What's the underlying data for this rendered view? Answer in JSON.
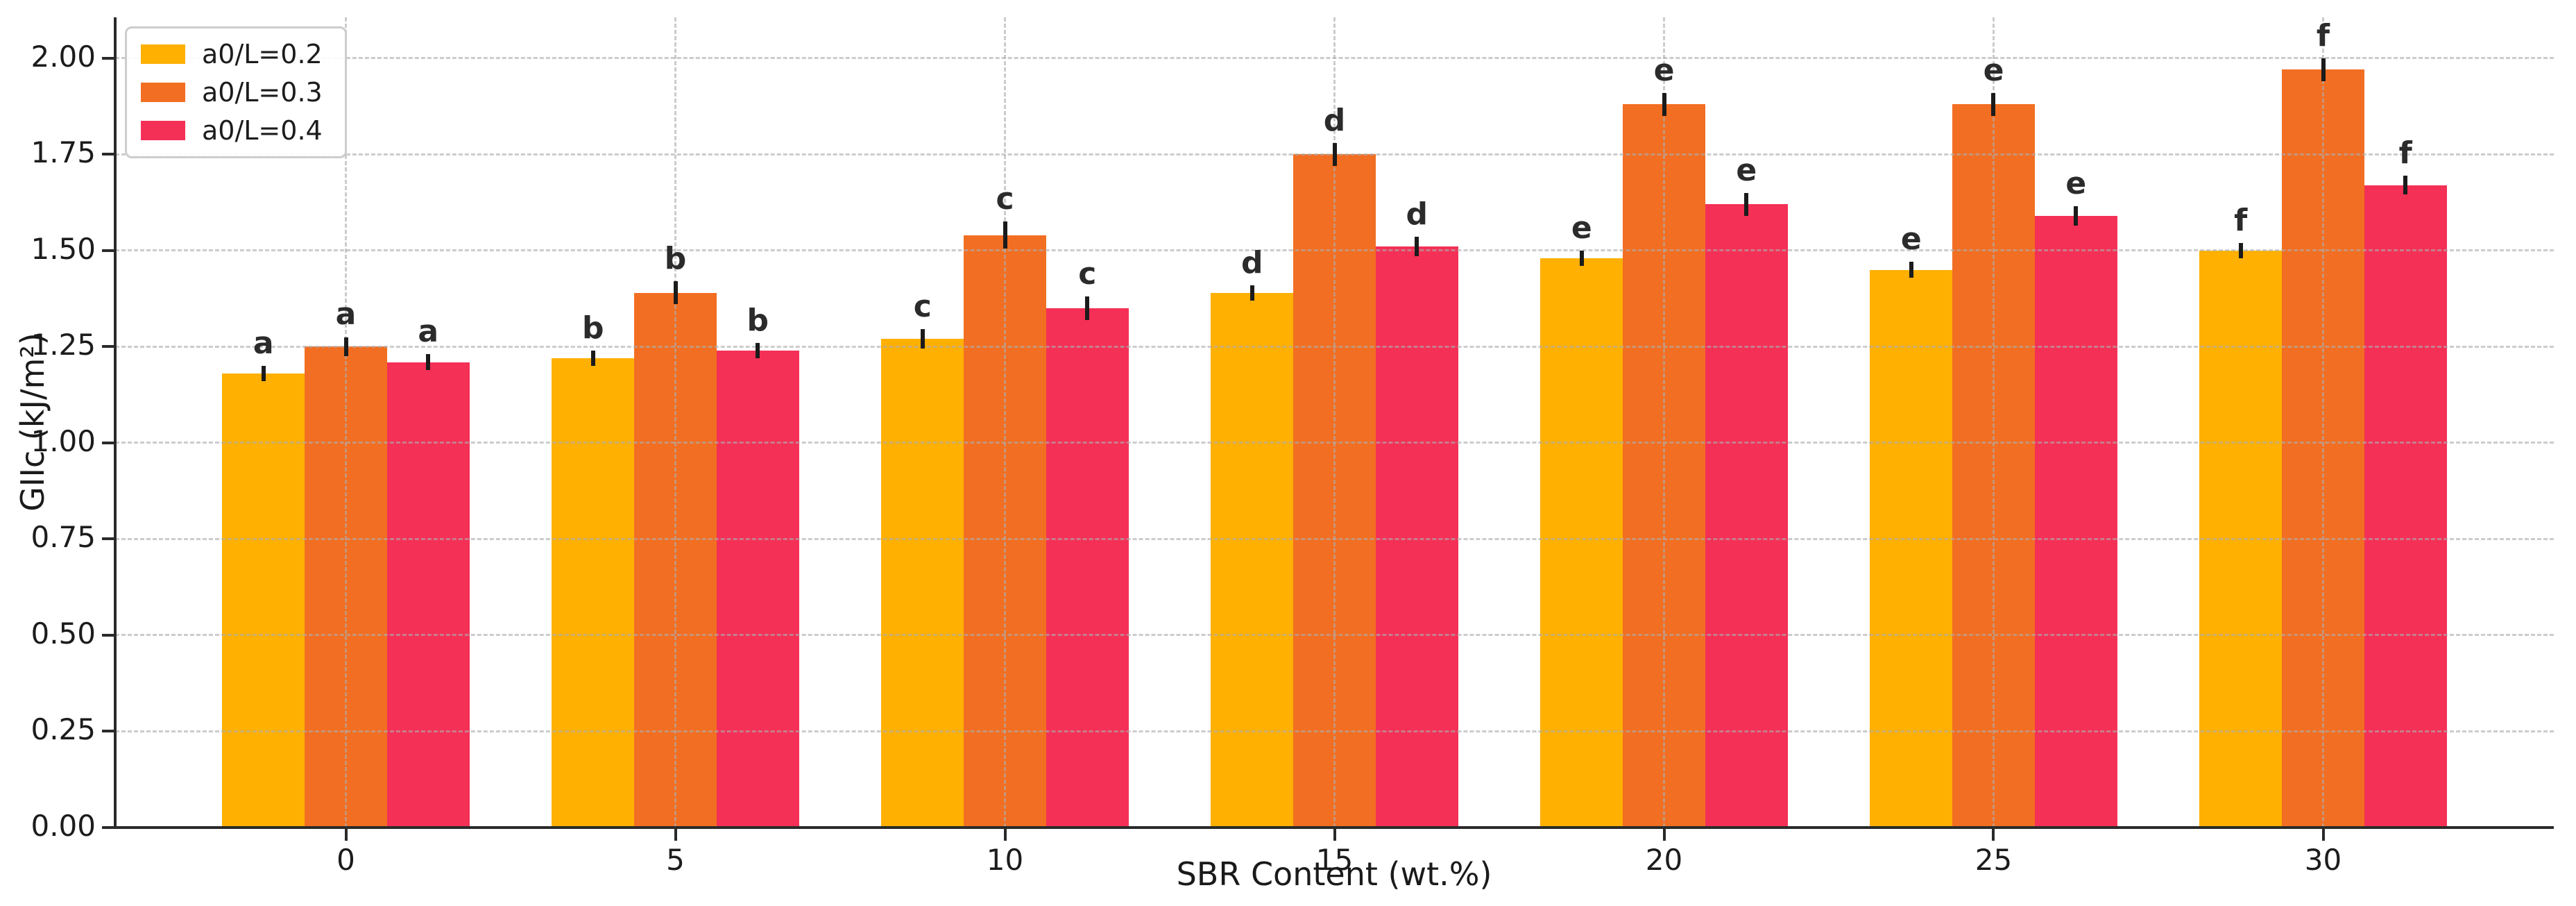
{
  "figure": {
    "background": "#ffffff",
    "text_color": "#1c1c1c",
    "spine_color": "#2a2a2a",
    "grid_color": "#acacac"
  },
  "chart_data": {
    "type": "bar",
    "title": "",
    "xlabel": "SBR Content (wt.%)",
    "ylabel": "GIIc (kJ/m²)",
    "categories": [
      "0",
      "5",
      "10",
      "15",
      "20",
      "25",
      "30"
    ],
    "series": [
      {
        "name": "a0/L=0.2",
        "color": "#FFB000",
        "values": [
          1.18,
          1.22,
          1.27,
          1.39,
          1.48,
          1.45,
          1.5
        ],
        "errors": [
          0.02,
          0.02,
          0.025,
          0.02,
          0.02,
          0.02,
          0.02
        ],
        "letters": [
          "a",
          "b",
          "c",
          "d",
          "e",
          "e",
          "f"
        ]
      },
      {
        "name": "a0/L=0.3",
        "color": "#F26E22",
        "values": [
          1.25,
          1.39,
          1.54,
          1.75,
          1.88,
          1.88,
          1.97
        ],
        "errors": [
          0.025,
          0.03,
          0.035,
          0.03,
          0.03,
          0.03,
          0.03
        ],
        "letters": [
          "a",
          "b",
          "c",
          "d",
          "e",
          "e",
          "f"
        ]
      },
      {
        "name": "a0/L=0.4",
        "color": "#F43056",
        "values": [
          1.21,
          1.24,
          1.35,
          1.51,
          1.62,
          1.59,
          1.67
        ],
        "errors": [
          0.02,
          0.02,
          0.03,
          0.025,
          0.03,
          0.025,
          0.025
        ],
        "letters": [
          "a",
          "b",
          "c",
          "d",
          "e",
          "e",
          "f"
        ]
      }
    ],
    "ylim": [
      0,
      2.106
    ],
    "yticks": [
      "0.00",
      "0.25",
      "0.50",
      "0.75",
      "1.00",
      "1.25",
      "1.50",
      "1.75",
      "2.00"
    ],
    "x_outer_pad": 0.7,
    "bar_width_ratio": 0.25,
    "grid": "dashed, both axes, drawn over bars",
    "legend_position": "upper left",
    "error_bar_style": "vertical line, no caps"
  }
}
